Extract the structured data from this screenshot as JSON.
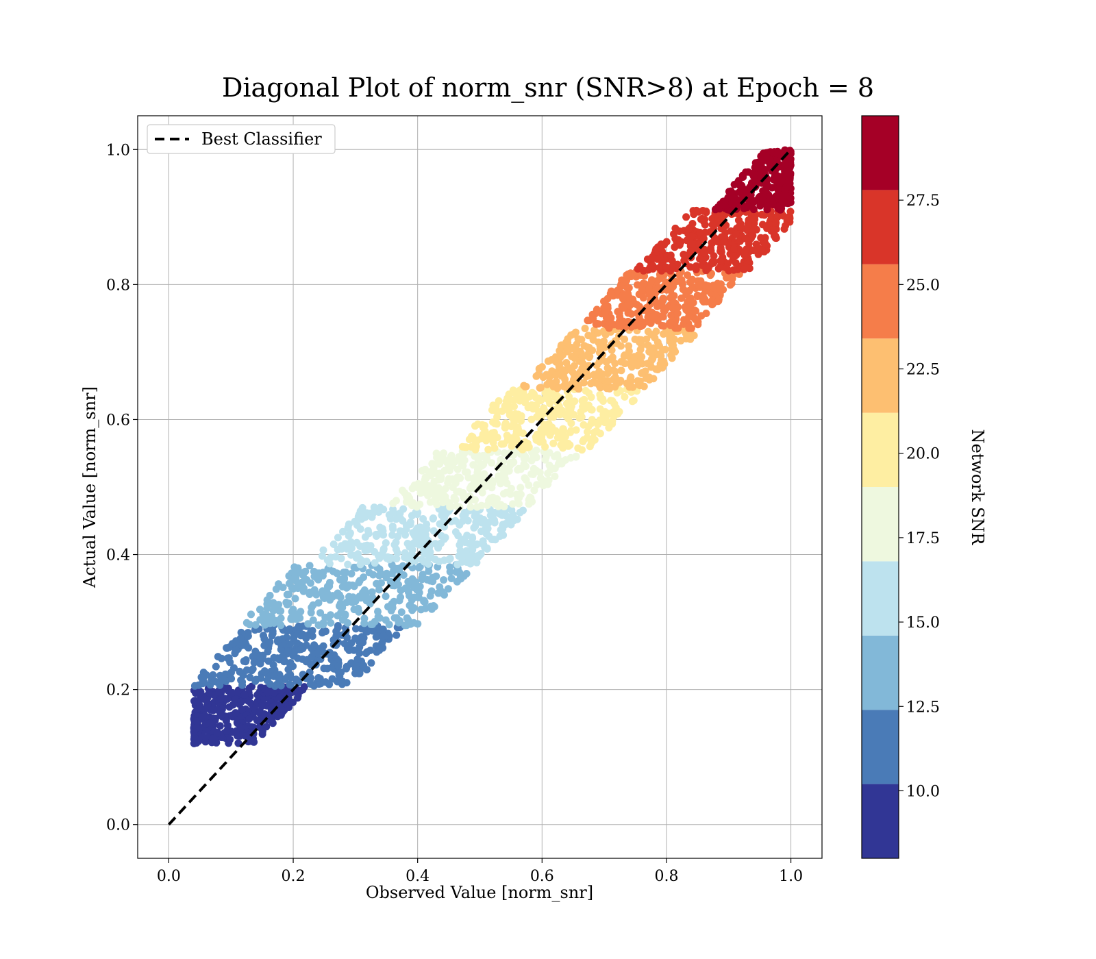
{
  "chart_data": {
    "type": "scatter",
    "title": "Diagonal Plot of norm_snr (SNR>8) at Epoch = 8",
    "xlabel": "Observed Value [norm_snr]",
    "ylabel": "Actual Value [norm_snr]",
    "xlim": [
      -0.05,
      1.05
    ],
    "ylim": [
      -0.05,
      1.05
    ],
    "x_ticks": [
      "0.0",
      "0.2",
      "0.4",
      "0.6",
      "0.8",
      "1.0"
    ],
    "y_ticks": [
      "0.0",
      "0.2",
      "0.4",
      "0.6",
      "0.8",
      "1.0"
    ],
    "grid": true,
    "legend": {
      "placement": "upper-left",
      "entries": [
        "Best Classifier"
      ]
    },
    "reference_line": {
      "name": "Best Classifier",
      "x": [
        0,
        1
      ],
      "y": [
        0,
        1
      ],
      "style": "dashed",
      "color": "#000000"
    },
    "colorbar": {
      "label": "Network SNR",
      "range": [
        8,
        30
      ],
      "ticks": [
        "10.0",
        "12.5",
        "15.0",
        "17.5",
        "20.0",
        "22.5",
        "25.0",
        "27.5"
      ],
      "bands": [
        {
          "from": 8,
          "to": 10.2,
          "color": "#313695"
        },
        {
          "from": 10.2,
          "to": 12.4,
          "color": "#4a7bb7"
        },
        {
          "from": 12.4,
          "to": 14.6,
          "color": "#82b8d8"
        },
        {
          "from": 14.6,
          "to": 16.8,
          "color": "#bde2ee"
        },
        {
          "from": 16.8,
          "to": 19.0,
          "color": "#eef8df"
        },
        {
          "from": 19.0,
          "to": 21.2,
          "color": "#feeea2"
        },
        {
          "from": 21.2,
          "to": 23.4,
          "color": "#fdbf71"
        },
        {
          "from": 23.4,
          "to": 25.6,
          "color": "#f57d4a"
        },
        {
          "from": 25.6,
          "to": 27.8,
          "color": "#d93529"
        },
        {
          "from": 27.8,
          "to": 30.0,
          "color": "#a50026"
        }
      ]
    },
    "series": [
      {
        "band": 0,
        "y_range": [
          0.12,
          0.205
        ],
        "x_offset_range": [
          -0.16,
          0.02
        ],
        "count": 380
      },
      {
        "band": 1,
        "y_range": [
          0.205,
          0.295
        ],
        "x_offset_range": [
          -0.17,
          0.09
        ],
        "count": 340
      },
      {
        "band": 2,
        "y_range": [
          0.295,
          0.385
        ],
        "x_offset_range": [
          -0.18,
          0.11
        ],
        "count": 320
      },
      {
        "band": 3,
        "y_range": [
          0.385,
          0.47
        ],
        "x_offset_range": [
          -0.16,
          0.11
        ],
        "count": 300
      },
      {
        "band": 4,
        "y_range": [
          0.47,
          0.555
        ],
        "x_offset_range": [
          -0.12,
          0.11
        ],
        "count": 280
      },
      {
        "band": 5,
        "y_range": [
          0.555,
          0.645
        ],
        "x_offset_range": [
          -0.1,
          0.12
        ],
        "count": 290
      },
      {
        "band": 6,
        "y_range": [
          0.645,
          0.735
        ],
        "x_offset_range": [
          -0.08,
          0.12
        ],
        "count": 300
      },
      {
        "band": 7,
        "y_range": [
          0.735,
          0.82
        ],
        "x_offset_range": [
          -0.08,
          0.11
        ],
        "count": 300
      },
      {
        "band": 8,
        "y_range": [
          0.82,
          0.91
        ],
        "x_offset_range": [
          -0.07,
          0.11
        ],
        "count": 320
      },
      {
        "band": 9,
        "y_range": [
          0.91,
          1.0
        ],
        "x_offset_range": [
          -0.04,
          0.08
        ],
        "count": 340
      }
    ]
  }
}
